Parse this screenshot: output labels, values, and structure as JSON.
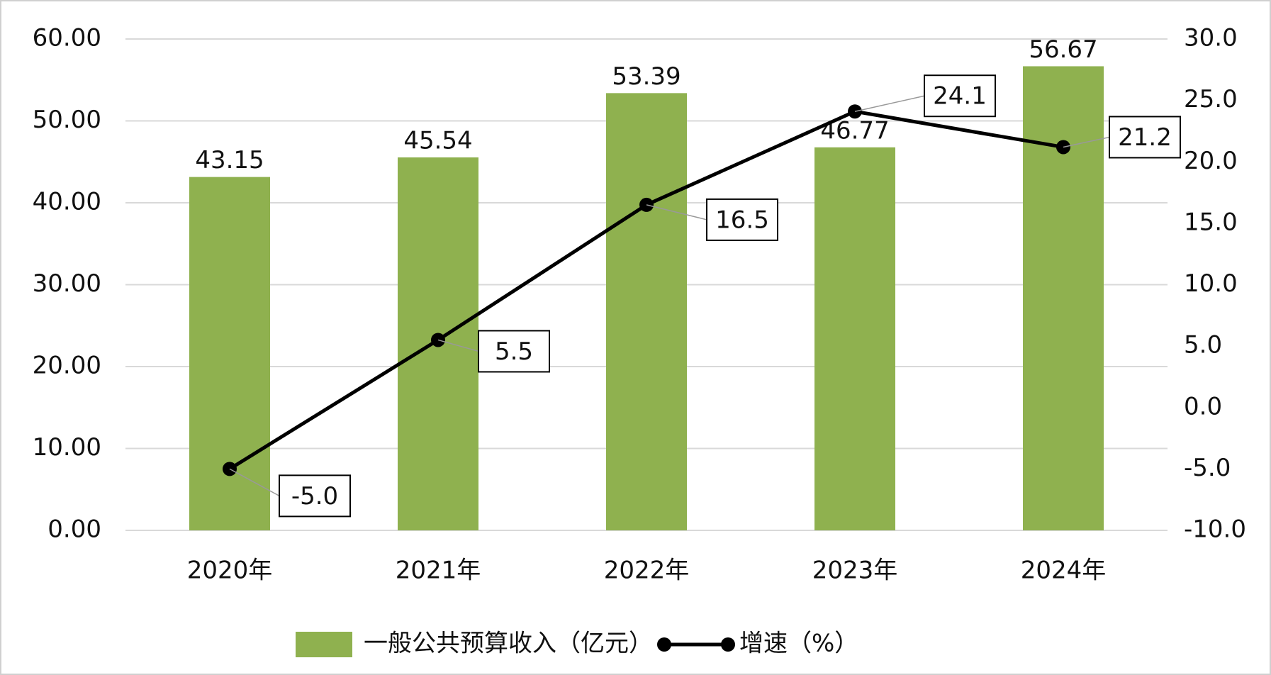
{
  "chart_data": {
    "type": "bar-line",
    "categories": [
      "2020年",
      "2021年",
      "2022年",
      "2023年",
      "2024年"
    ],
    "series": [
      {
        "name": "一般公共预算收入（亿元）",
        "type": "bar",
        "color": "#8fb14f",
        "values": [
          43.15,
          45.54,
          53.39,
          46.77,
          56.67
        ]
      },
      {
        "name": "增速（%）",
        "type": "line",
        "axis": "y2",
        "color": "#000000",
        "values": [
          -5.0,
          5.5,
          16.5,
          24.1,
          21.2
        ],
        "value_labels": [
          "-5.0",
          "5.5",
          "16.5",
          "24.1",
          "21.2"
        ]
      }
    ],
    "ylim": [
      0,
      60
    ],
    "yticks": [
      {
        "value": 0,
        "label": "0.00"
      },
      {
        "value": 10,
        "label": "10.00"
      },
      {
        "value": 20,
        "label": "20.00"
      },
      {
        "value": 30,
        "label": "30.00"
      },
      {
        "value": 40,
        "label": "40.00"
      },
      {
        "value": 50,
        "label": "50.00"
      },
      {
        "value": 60,
        "label": "60.00"
      }
    ],
    "y2lim": [
      -10,
      30
    ],
    "y2ticks": [
      {
        "value": -10,
        "label": "-10.0"
      },
      {
        "value": -5,
        "label": "-5.0"
      },
      {
        "value": 0,
        "label": "0.0"
      },
      {
        "value": 5,
        "label": "5.0"
      },
      {
        "value": 10,
        "label": "10.0"
      },
      {
        "value": 15,
        "label": "15.0"
      },
      {
        "value": 20,
        "label": "20.0"
      },
      {
        "value": 25,
        "label": "25.0"
      },
      {
        "value": 30,
        "label": "30.0"
      }
    ],
    "grid": true,
    "legend": "bottom"
  }
}
